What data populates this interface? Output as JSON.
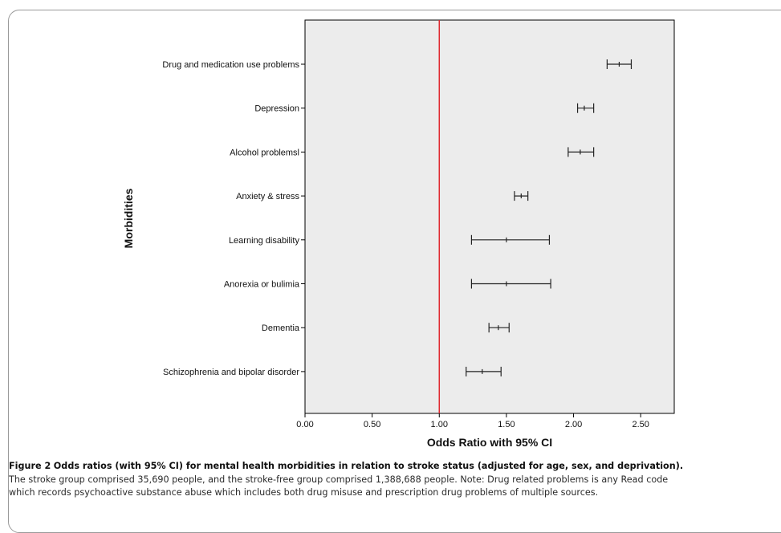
{
  "chart_data": {
    "type": "forest",
    "xlabel": "Odds Ratio with 95% CI",
    "ylabel": "Morbidities",
    "xlim": [
      0,
      2.75
    ],
    "xticks": [
      0,
      0.5,
      1,
      1.5,
      2,
      2.5
    ],
    "xtick_labels": [
      "0.00",
      "0.50",
      "1.00",
      "1.50",
      "2.00",
      "2.50"
    ],
    "reference_line": {
      "x": 1.0,
      "color": "#e0282e"
    },
    "plot_background": "#ececec",
    "marker_color": "#222222",
    "categories": [
      "Drug and medication use problems",
      "Depression",
      "Alcohol problemsl",
      "Anxiety & stress",
      "Learning disability",
      "Anorexia or bulimia",
      "Dementia",
      "Schizophrenia and bipolar disorder"
    ],
    "odds_ratio": [
      2.34,
      2.08,
      2.05,
      1.61,
      1.5,
      1.5,
      1.44,
      1.32
    ],
    "ci_lower": [
      2.25,
      2.03,
      1.96,
      1.56,
      1.24,
      1.24,
      1.37,
      1.2
    ],
    "ci_upper": [
      2.43,
      2.15,
      2.15,
      1.66,
      1.82,
      1.83,
      1.52,
      1.46
    ]
  },
  "caption": {
    "figure_label": "Figure 2",
    "title": "Odds ratios (with 95% CI) for mental health morbidities in relation to stroke status (adjusted for age, sex, and deprivation).",
    "line1": "The stroke group comprised 35,690 people, and the stroke-free group comprised 1,388,688 people. Note: Drug related problems is any Read code",
    "line2": "which records psychoactive substance abuse which includes both drug misuse  and prescription drug problems of multiple sources."
  }
}
